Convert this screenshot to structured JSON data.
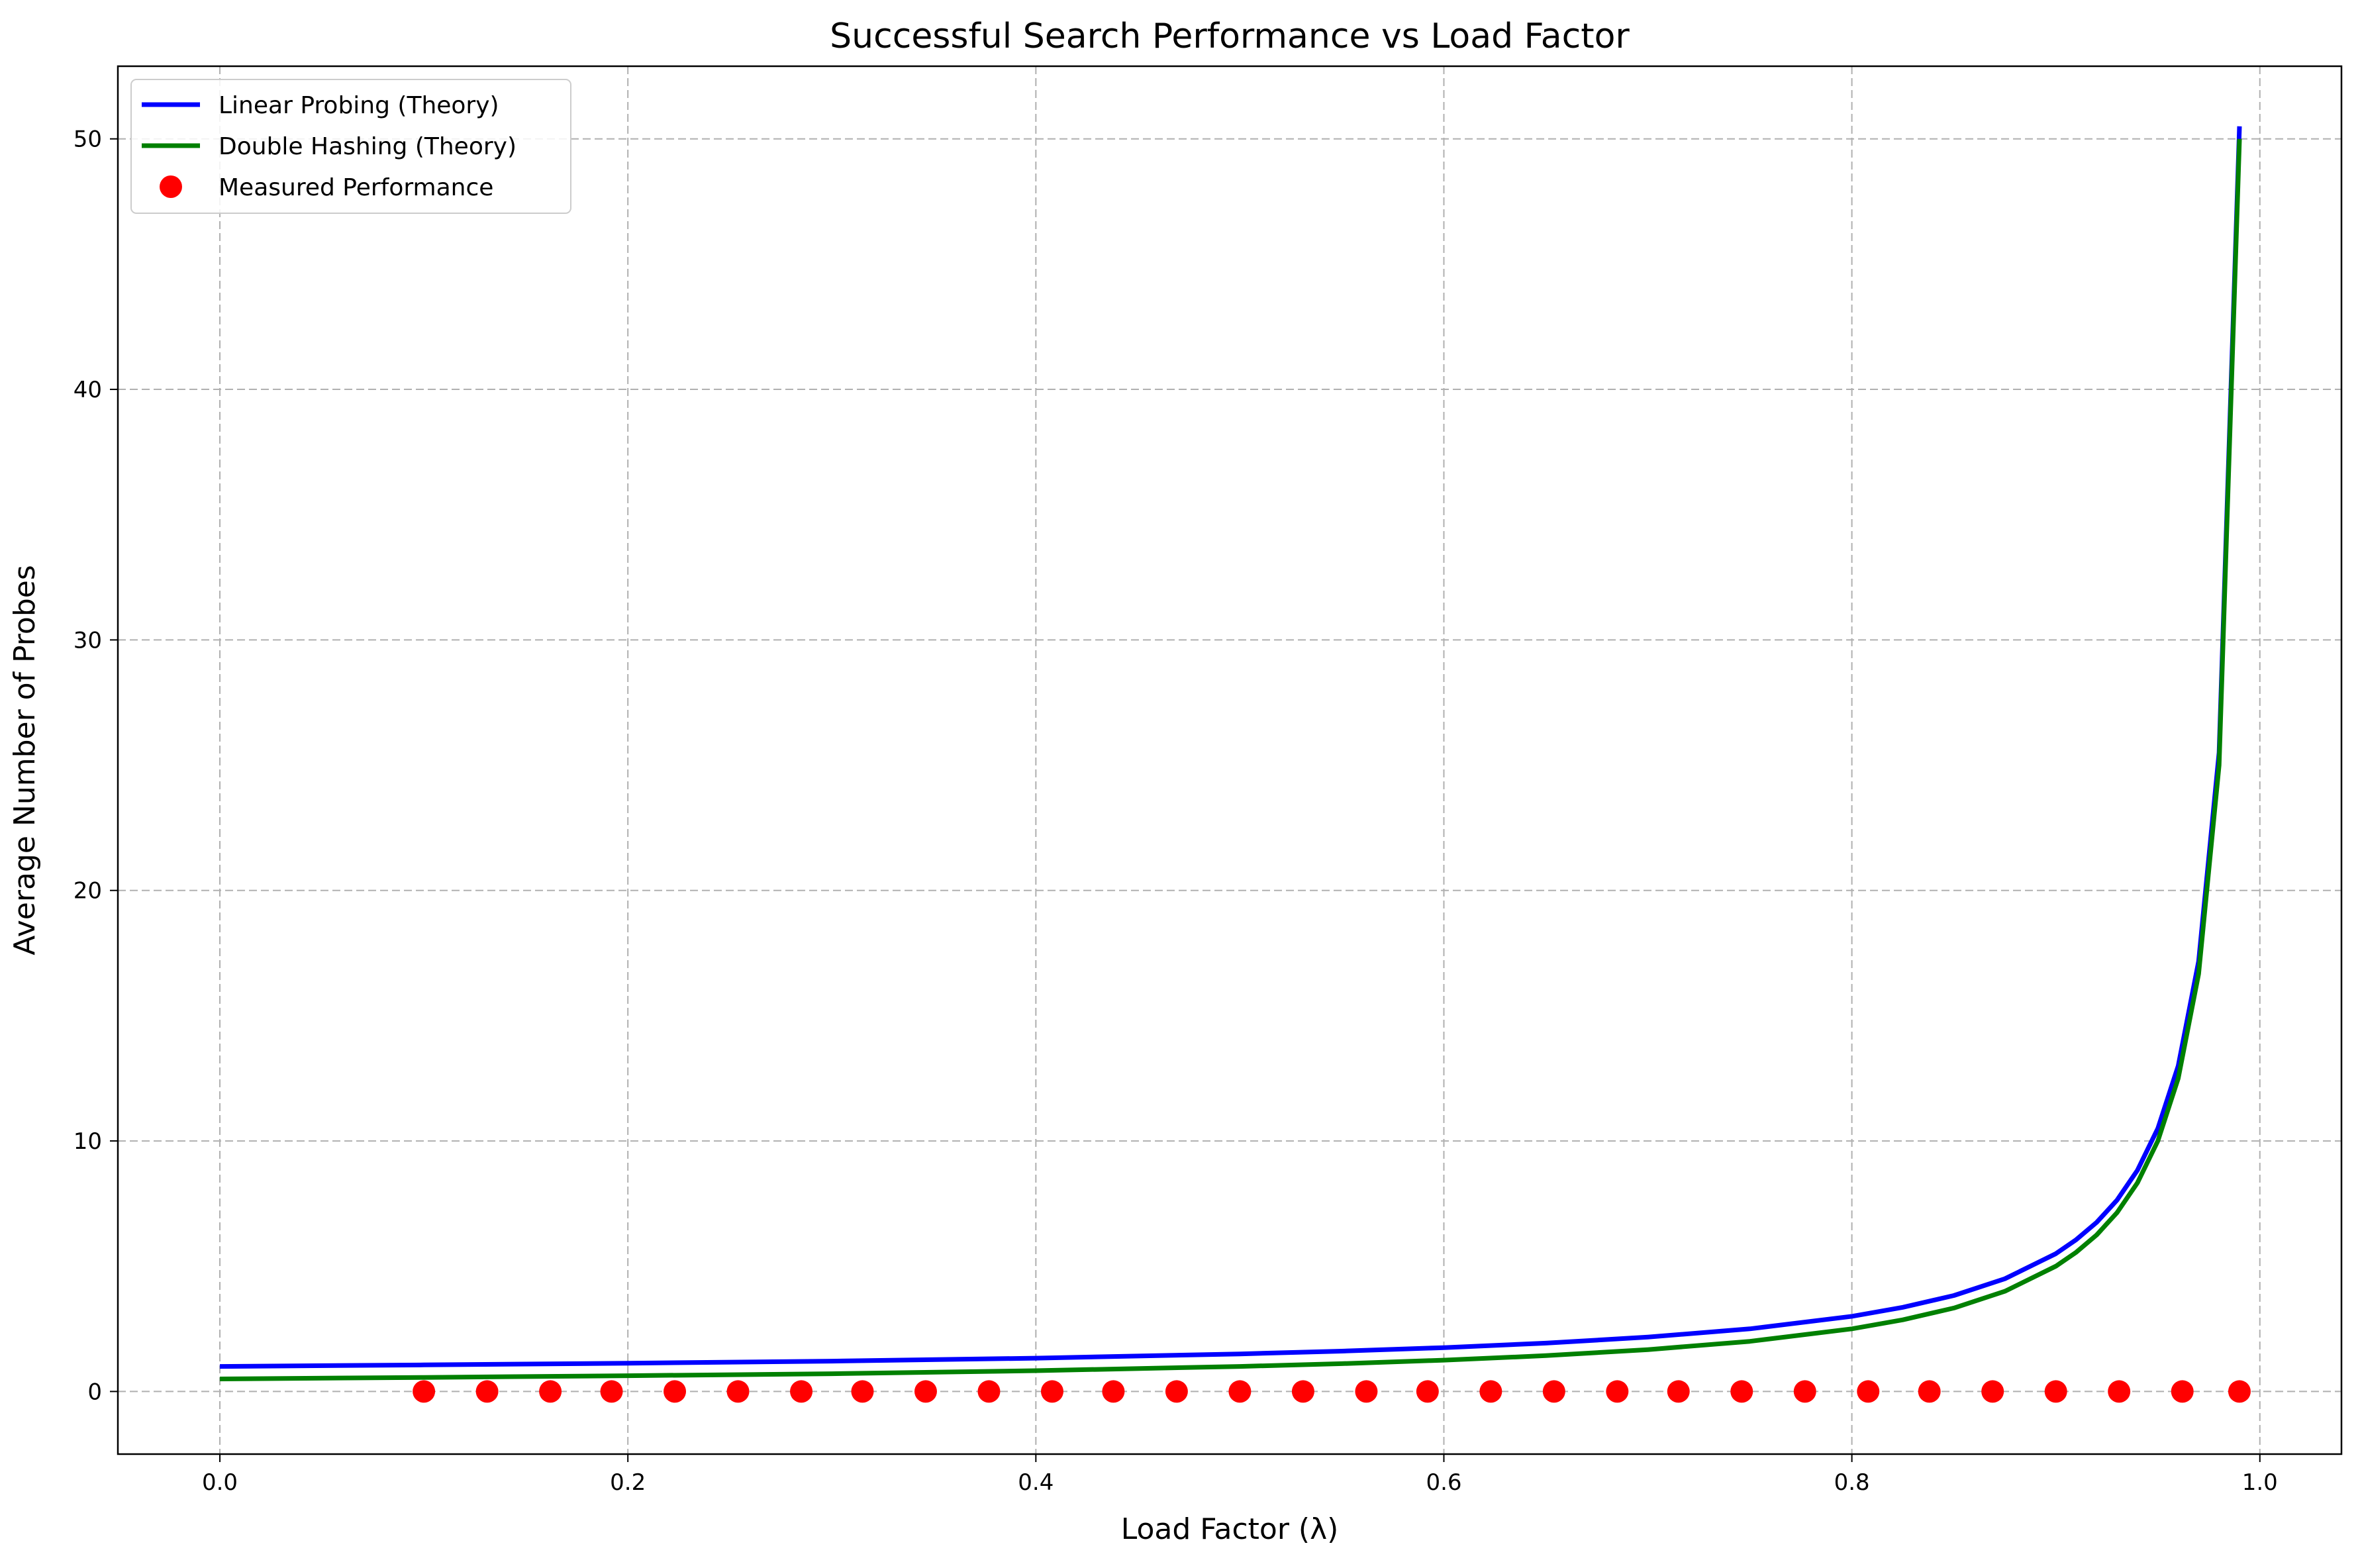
{
  "chart_data": {
    "type": "line",
    "title": "Successful Search Performance vs Load Factor",
    "xlabel": "Load Factor (λ)",
    "ylabel": "Average Number of Probes",
    "xlim": [
      -0.05,
      1.04
    ],
    "ylim": [
      -2.5,
      52.9
    ],
    "xticks": [
      0.0,
      0.2,
      0.4,
      0.6,
      0.8,
      1.0
    ],
    "xtick_labels": [
      "0.0",
      "0.2",
      "0.4",
      "0.6",
      "0.8",
      "1.0"
    ],
    "yticks": [
      0,
      10,
      20,
      30,
      40,
      50
    ],
    "ytick_labels": [
      "0",
      "10",
      "20",
      "30",
      "40",
      "50"
    ],
    "grid": true,
    "legend_position": "top-left",
    "series": [
      {
        "name": "Linear Probing (Theory)",
        "kind": "line",
        "color": "#0000ff",
        "x": [
          0.0,
          0.1,
          0.2,
          0.3,
          0.4,
          0.5,
          0.55,
          0.6,
          0.65,
          0.7,
          0.75,
          0.8,
          0.825,
          0.85,
          0.875,
          0.9,
          0.91,
          0.92,
          0.93,
          0.94,
          0.95,
          0.96,
          0.97,
          0.98,
          0.99
        ],
        "y": [
          1.0,
          1.06,
          1.13,
          1.21,
          1.33,
          1.5,
          1.61,
          1.75,
          1.93,
          2.17,
          2.5,
          3.0,
          3.36,
          3.83,
          4.5,
          5.5,
          6.06,
          6.75,
          7.64,
          8.83,
          10.5,
          13.0,
          17.17,
          25.5,
          50.5
        ]
      },
      {
        "name": "Double Hashing (Theory)",
        "kind": "line",
        "color": "#008000",
        "x": [
          0.0,
          0.1,
          0.2,
          0.3,
          0.4,
          0.5,
          0.55,
          0.6,
          0.65,
          0.7,
          0.75,
          0.8,
          0.825,
          0.85,
          0.875,
          0.9,
          0.91,
          0.92,
          0.93,
          0.94,
          0.95,
          0.96,
          0.97,
          0.98,
          0.99
        ],
        "y": [
          0.5,
          0.56,
          0.63,
          0.71,
          0.83,
          1.0,
          1.11,
          1.25,
          1.43,
          1.67,
          2.0,
          2.5,
          2.86,
          3.33,
          4.0,
          5.0,
          5.56,
          6.25,
          7.14,
          8.33,
          10.0,
          12.5,
          16.67,
          25.0,
          50.0
        ]
      },
      {
        "name": "Measured Performance",
        "kind": "scatter",
        "color": "#ff0000",
        "x": [
          0.1,
          0.131,
          0.162,
          0.192,
          0.223,
          0.254,
          0.285,
          0.315,
          0.346,
          0.377,
          0.408,
          0.438,
          0.469,
          0.5,
          0.531,
          0.562,
          0.592,
          0.623,
          0.654,
          0.685,
          0.715,
          0.746,
          0.777,
          0.808,
          0.838,
          0.869,
          0.9,
          0.931,
          0.962,
          0.99
        ],
        "y": [
          0,
          0,
          0,
          0,
          0,
          0,
          0,
          0,
          0,
          0,
          0,
          0,
          0,
          0,
          0,
          0,
          0,
          0,
          0,
          0,
          0,
          0,
          0,
          0,
          0,
          0,
          0,
          0,
          0,
          0
        ]
      }
    ]
  }
}
